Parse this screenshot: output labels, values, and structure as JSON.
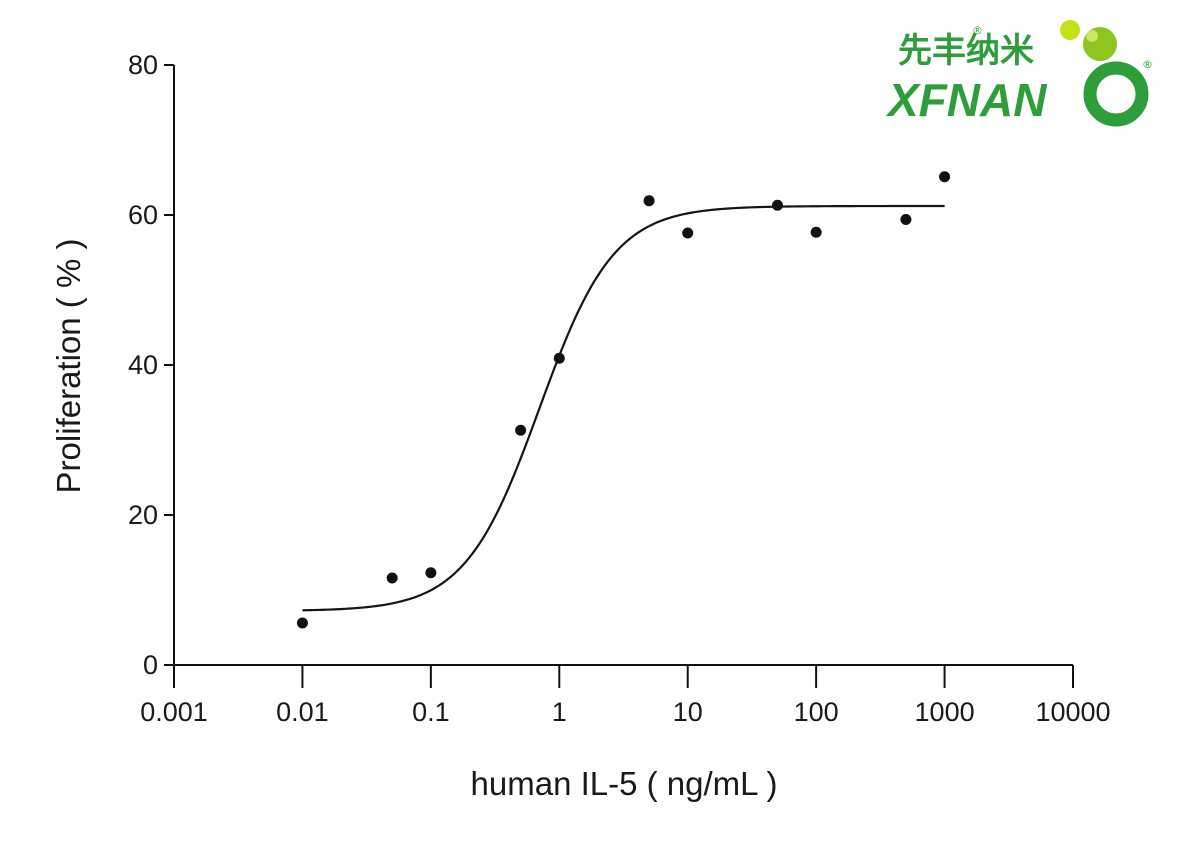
{
  "logo": {
    "chinese": "先丰纳米",
    "english": "XFNAN",
    "registered": "®",
    "colors": {
      "green": "#2e9e3a",
      "lime": "#c5e01a"
    }
  },
  "chart_data": {
    "type": "scatter",
    "title": "",
    "xlabel": "human IL-5 ( ng/mL )",
    "ylabel": "Proliferation ( % )",
    "xscale": "log",
    "xlim": [
      0.001,
      10000
    ],
    "ylim": [
      0,
      80
    ],
    "x_ticks": [
      0.001,
      0.01,
      0.1,
      1,
      10,
      100,
      1000,
      10000
    ],
    "x_tick_labels": [
      "0.001",
      "0.01",
      "0.1",
      "1",
      "10",
      "100",
      "1000",
      "10000"
    ],
    "y_ticks": [
      0,
      20,
      40,
      60,
      80
    ],
    "y_tick_labels": [
      "0",
      "20",
      "40",
      "60",
      "80"
    ],
    "grid": false,
    "legend": "none",
    "series": [
      {
        "x": [
          0.01,
          0.05,
          0.1,
          0.5,
          1,
          5,
          10,
          50,
          100,
          500,
          1000
        ],
        "y": [
          5.6,
          11.6,
          12.3,
          31.3,
          40.9,
          61.9,
          57.6,
          61.3,
          57.7,
          59.4,
          65.1
        ]
      }
    ],
    "fit_curve": {
      "model": "4-parameter logistic",
      "bottom": 7.2,
      "top": 61.2,
      "ec50": 0.7,
      "hill": 1.5,
      "x_range": [
        0.01,
        1000
      ]
    },
    "colors": {
      "points": "#111111",
      "curve": "#0d1a0d",
      "axes": "#111111"
    }
  }
}
